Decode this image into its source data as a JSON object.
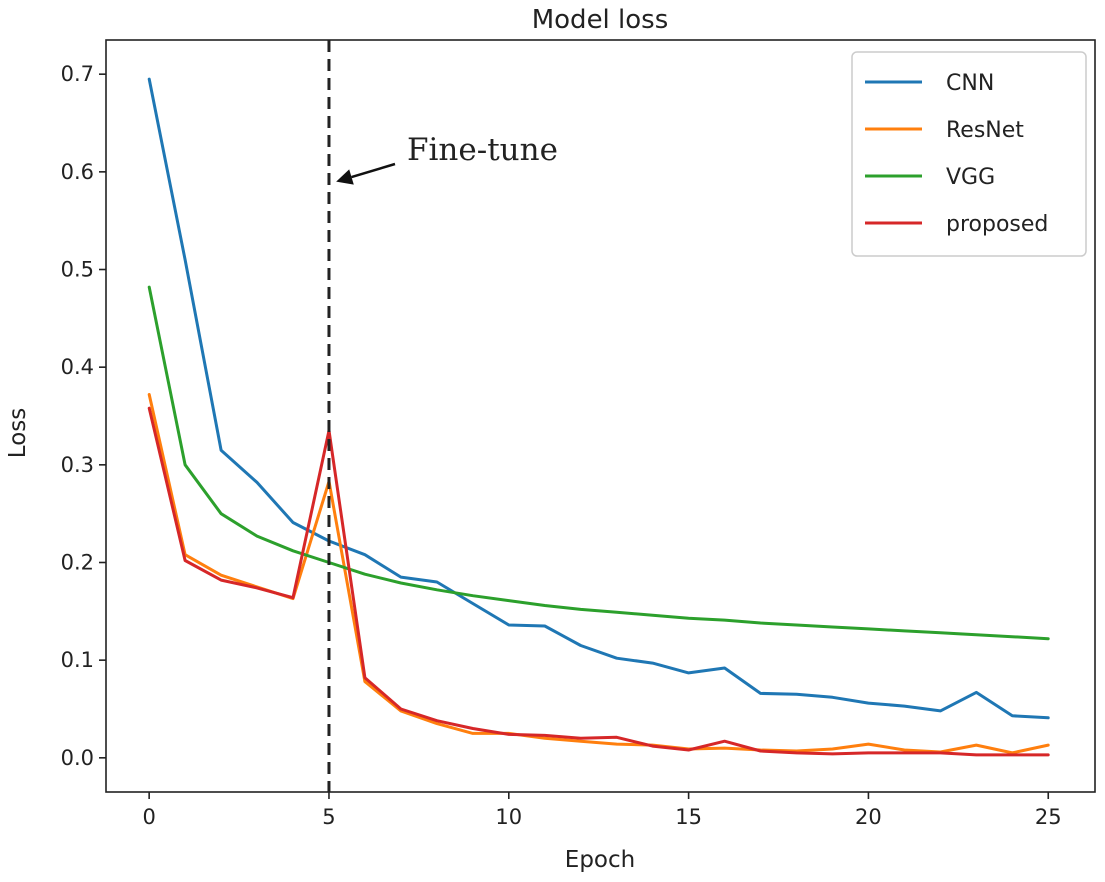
{
  "chart_data": {
    "type": "line",
    "title": "Model loss",
    "xlabel": "Epoch",
    "ylabel": "Loss",
    "xlim": [
      -1.2,
      26.3
    ],
    "ylim": [
      -0.035,
      0.735
    ],
    "xticks": [
      0,
      5,
      10,
      15,
      20,
      25
    ],
    "yticks": [
      0.0,
      0.1,
      0.2,
      0.3,
      0.4,
      0.5,
      0.6,
      0.7
    ],
    "grid": false,
    "legend_position": "top-right",
    "x": [
      0,
      1,
      2,
      3,
      4,
      5,
      6,
      7,
      8,
      9,
      10,
      11,
      12,
      13,
      14,
      15,
      16,
      17,
      18,
      19,
      20,
      21,
      22,
      23,
      24,
      25
    ],
    "series": [
      {
        "name": "CNN",
        "color": "#1f77b4",
        "values": [
          0.695,
          0.51,
          0.315,
          0.282,
          0.241,
          0.222,
          0.208,
          0.185,
          0.18,
          0.158,
          0.136,
          0.135,
          0.115,
          0.102,
          0.097,
          0.087,
          0.092,
          0.066,
          0.065,
          0.062,
          0.056,
          0.053,
          0.048,
          0.067,
          0.043,
          0.041
        ]
      },
      {
        "name": "ResNet",
        "color": "#ff7f0e",
        "values": [
          0.372,
          0.208,
          0.187,
          0.175,
          0.163,
          0.283,
          0.078,
          0.048,
          0.035,
          0.025,
          0.025,
          0.02,
          0.017,
          0.014,
          0.013,
          0.009,
          0.01,
          0.008,
          0.007,
          0.009,
          0.014,
          0.008,
          0.006,
          0.013,
          0.005,
          0.013
        ]
      },
      {
        "name": "VGG",
        "color": "#2ca02c",
        "values": [
          0.482,
          0.3,
          0.25,
          0.227,
          0.212,
          0.2,
          0.188,
          0.179,
          0.172,
          0.166,
          0.161,
          0.156,
          0.152,
          0.149,
          0.146,
          0.143,
          0.141,
          0.138,
          0.136,
          0.134,
          0.132,
          0.13,
          0.128,
          0.126,
          0.124,
          0.122
        ]
      },
      {
        "name": "proposed",
        "color": "#d62728",
        "values": [
          0.358,
          0.202,
          0.182,
          0.174,
          0.164,
          0.335,
          0.082,
          0.05,
          0.038,
          0.03,
          0.024,
          0.023,
          0.02,
          0.021,
          0.012,
          0.008,
          0.017,
          0.007,
          0.005,
          0.004,
          0.005,
          0.005,
          0.005,
          0.003,
          0.003,
          0.003
        ]
      }
    ],
    "vertical_line": {
      "x": 5,
      "style": "dashed",
      "color": "#222222"
    },
    "annotation": {
      "text": "Fine-tune",
      "arrow_to": {
        "x": 5.2,
        "y": 0.59
      }
    }
  }
}
